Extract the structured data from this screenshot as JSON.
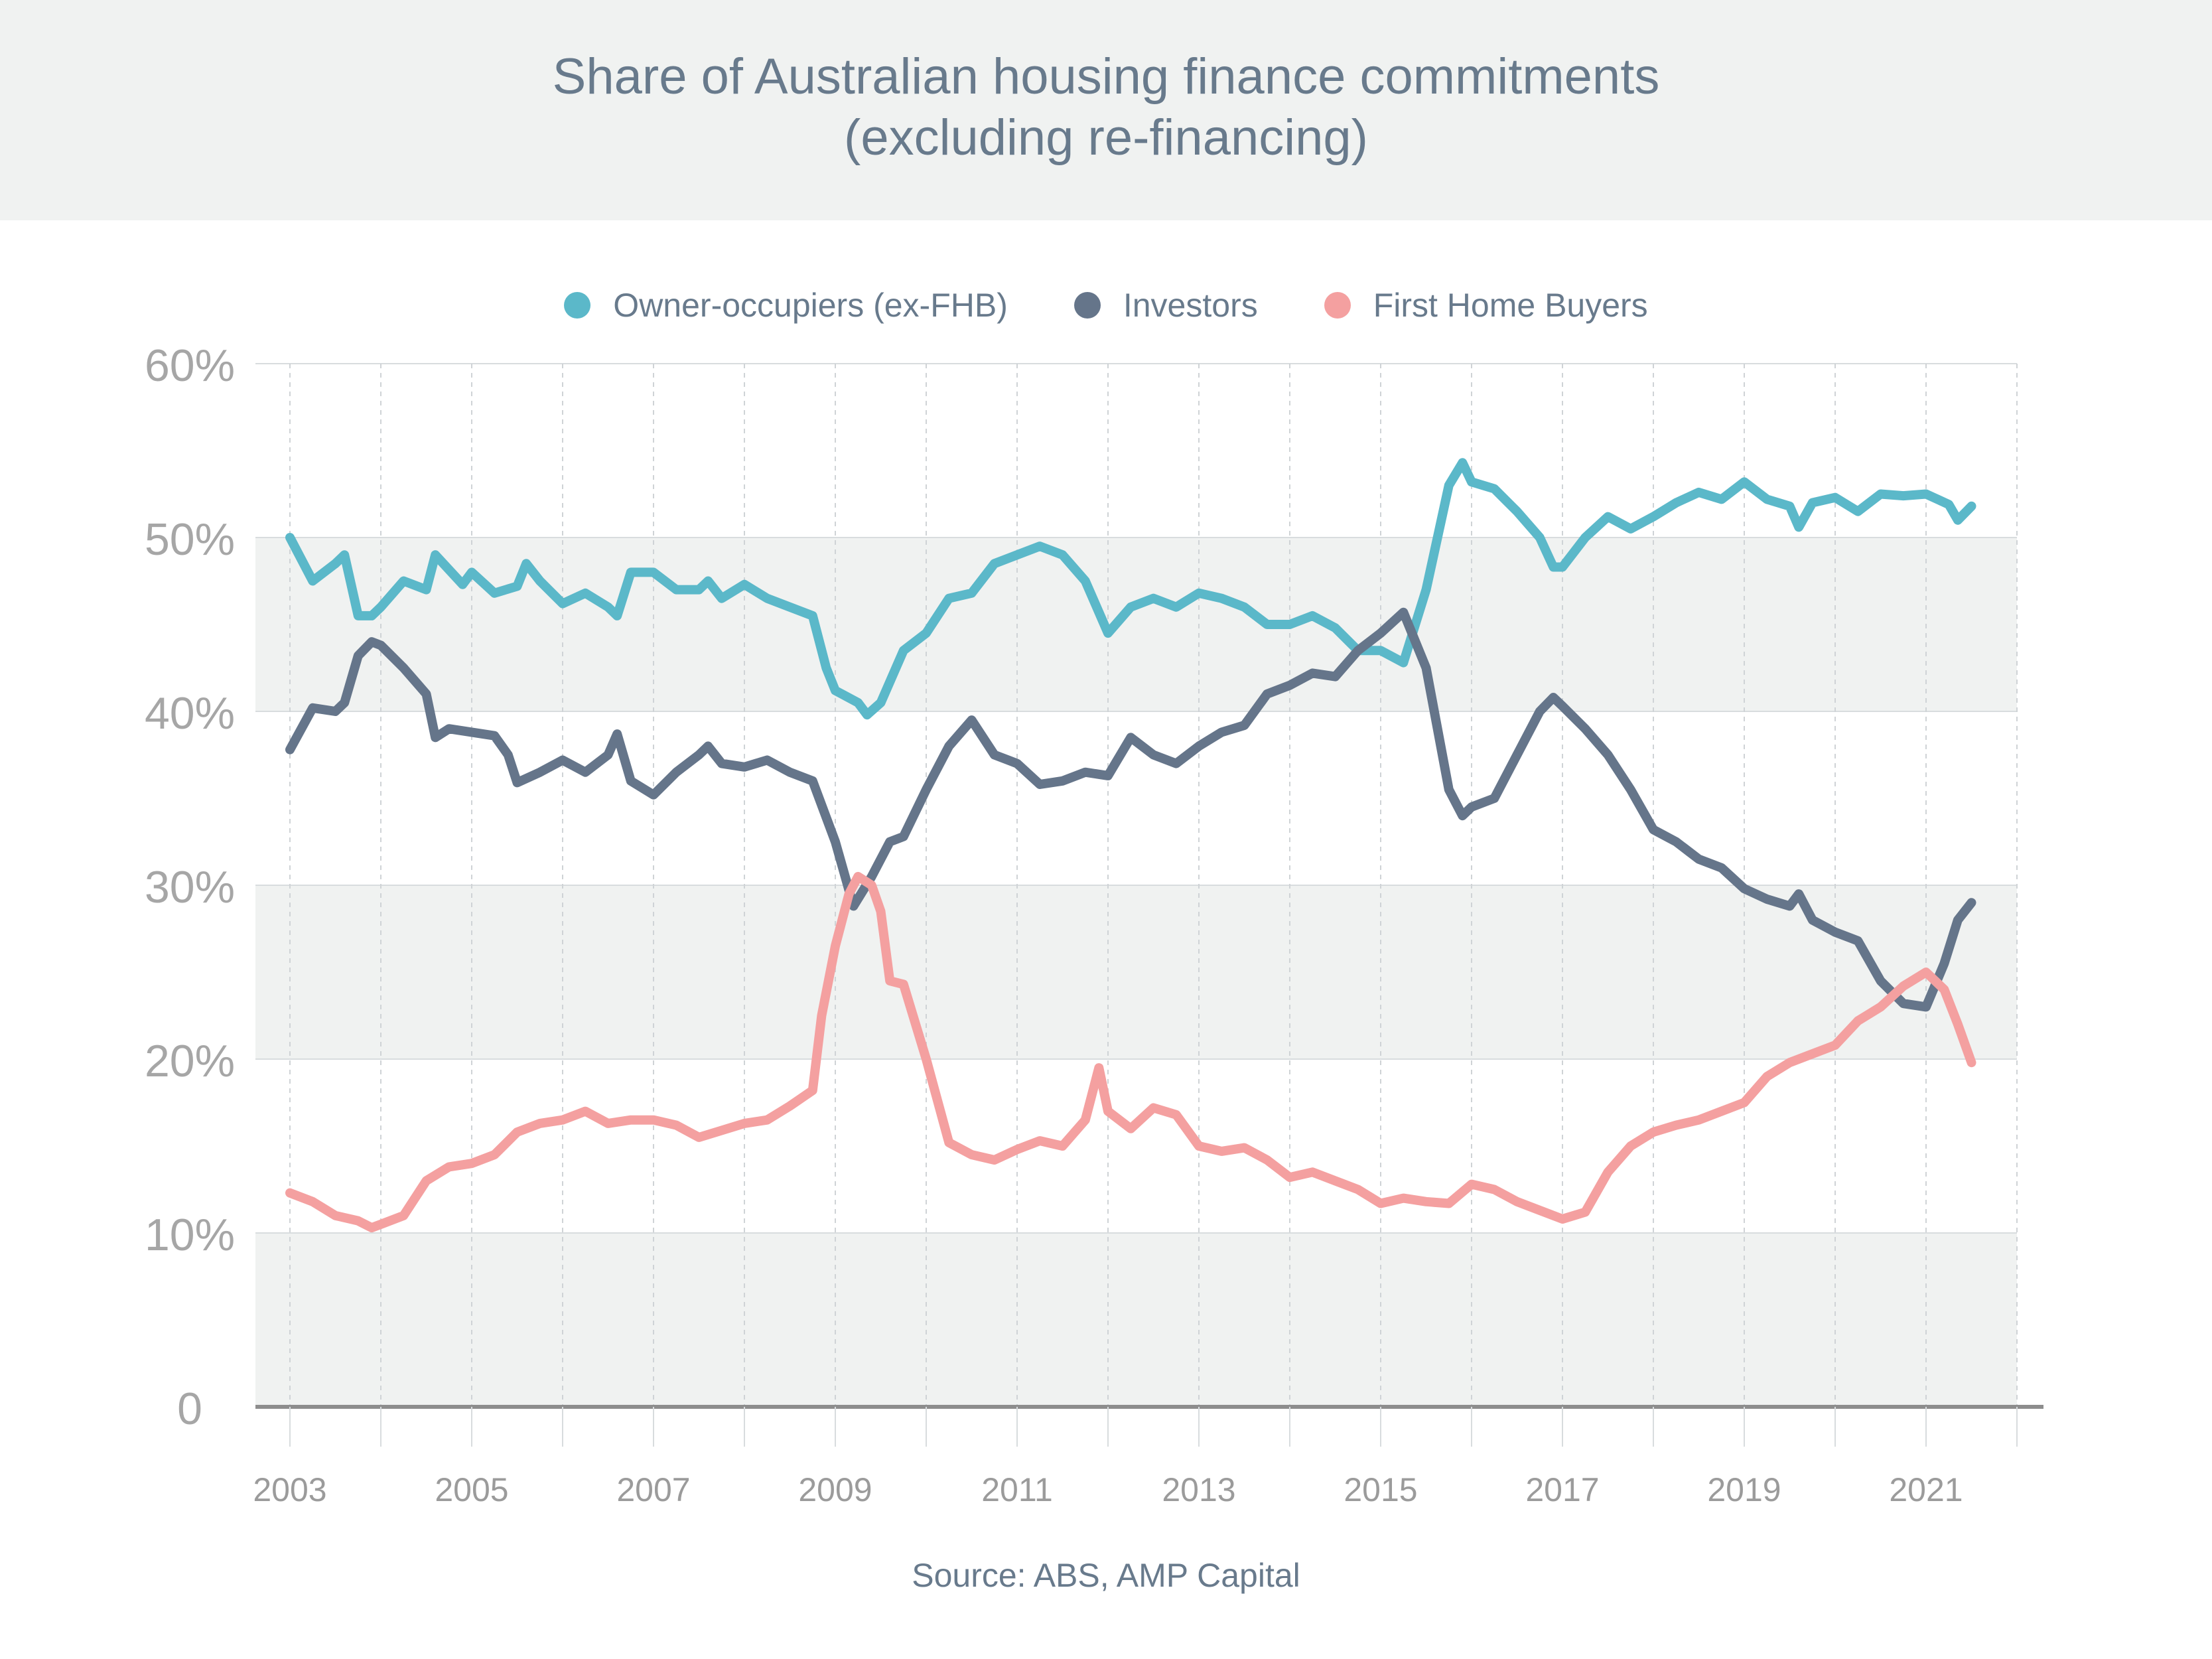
{
  "chart_data": {
    "type": "line",
    "title": "Share of Australian housing finance commitments",
    "subtitle": "(excluding re-financing)",
    "source": "Source: ABS, AMP Capital",
    "x_ticks": [
      "2003",
      "2005",
      "2007",
      "2009",
      "2011",
      "2013",
      "2015",
      "2017",
      "2019",
      "2021"
    ],
    "y_ticks": [
      "0",
      "10%",
      "20%",
      "30%",
      "40%",
      "50%",
      "60%"
    ],
    "ylim": [
      0,
      60
    ],
    "xlim": [
      2003,
      2022
    ],
    "legend_position": "top-center",
    "series": [
      {
        "name": "Owner-occupiers (ex-FHB)",
        "color": "#5bb8c9",
        "points": [
          [
            2003.0,
            50.0
          ],
          [
            2003.25,
            47.5
          ],
          [
            2003.5,
            48.5
          ],
          [
            2003.6,
            49.0
          ],
          [
            2003.75,
            45.5
          ],
          [
            2003.9,
            45.5
          ],
          [
            2004.0,
            46.0
          ],
          [
            2004.25,
            47.5
          ],
          [
            2004.5,
            47.0
          ],
          [
            2004.6,
            49.0
          ],
          [
            2004.9,
            47.3
          ],
          [
            2005.0,
            48.0
          ],
          [
            2005.25,
            46.8
          ],
          [
            2005.5,
            47.2
          ],
          [
            2005.6,
            48.5
          ],
          [
            2005.75,
            47.5
          ],
          [
            2006.0,
            46.2
          ],
          [
            2006.25,
            46.8
          ],
          [
            2006.5,
            46.0
          ],
          [
            2006.6,
            45.5
          ],
          [
            2006.75,
            48.0
          ],
          [
            2007.0,
            48.0
          ],
          [
            2007.25,
            47.0
          ],
          [
            2007.5,
            47.0
          ],
          [
            2007.6,
            47.5
          ],
          [
            2007.75,
            46.5
          ],
          [
            2008.0,
            47.3
          ],
          [
            2008.25,
            46.5
          ],
          [
            2008.5,
            46.0
          ],
          [
            2008.75,
            45.5
          ],
          [
            2008.9,
            42.5
          ],
          [
            2009.0,
            41.2
          ],
          [
            2009.25,
            40.5
          ],
          [
            2009.35,
            39.8
          ],
          [
            2009.5,
            40.5
          ],
          [
            2009.75,
            43.5
          ],
          [
            2010.0,
            44.5
          ],
          [
            2010.25,
            46.5
          ],
          [
            2010.5,
            46.8
          ],
          [
            2010.75,
            48.5
          ],
          [
            2011.0,
            49.0
          ],
          [
            2011.25,
            49.5
          ],
          [
            2011.5,
            49.0
          ],
          [
            2011.75,
            47.5
          ],
          [
            2012.0,
            44.5
          ],
          [
            2012.25,
            46.0
          ],
          [
            2012.5,
            46.5
          ],
          [
            2012.75,
            46.0
          ],
          [
            2013.0,
            46.8
          ],
          [
            2013.25,
            46.5
          ],
          [
            2013.5,
            46.0
          ],
          [
            2013.75,
            45.0
          ],
          [
            2014.0,
            45.0
          ],
          [
            2014.25,
            45.5
          ],
          [
            2014.5,
            44.8
          ],
          [
            2014.75,
            43.5
          ],
          [
            2015.0,
            43.5
          ],
          [
            2015.25,
            42.8
          ],
          [
            2015.5,
            47.0
          ],
          [
            2015.75,
            53.0
          ],
          [
            2015.9,
            54.3
          ],
          [
            2016.0,
            53.2
          ],
          [
            2016.25,
            52.8
          ],
          [
            2016.5,
            51.5
          ],
          [
            2016.75,
            50.0
          ],
          [
            2016.9,
            48.3
          ],
          [
            2017.0,
            48.3
          ],
          [
            2017.25,
            50.0
          ],
          [
            2017.5,
            51.2
          ],
          [
            2017.75,
            50.5
          ],
          [
            2018.0,
            51.2
          ],
          [
            2018.25,
            52.0
          ],
          [
            2018.5,
            52.6
          ],
          [
            2018.75,
            52.2
          ],
          [
            2019.0,
            53.2
          ],
          [
            2019.25,
            52.2
          ],
          [
            2019.5,
            51.8
          ],
          [
            2019.6,
            50.6
          ],
          [
            2019.75,
            52.0
          ],
          [
            2020.0,
            52.3
          ],
          [
            2020.25,
            51.5
          ],
          [
            2020.5,
            52.5
          ],
          [
            2020.75,
            52.4
          ],
          [
            2021.0,
            52.5
          ],
          [
            2021.25,
            51.9
          ],
          [
            2021.35,
            51.0
          ],
          [
            2021.5,
            51.8
          ]
        ]
      },
      {
        "name": "Investors",
        "color": "#65758a",
        "points": [
          [
            2003.0,
            37.8
          ],
          [
            2003.25,
            40.2
          ],
          [
            2003.5,
            40.0
          ],
          [
            2003.6,
            40.5
          ],
          [
            2003.75,
            43.2
          ],
          [
            2003.9,
            44.0
          ],
          [
            2004.0,
            43.8
          ],
          [
            2004.25,
            42.5
          ],
          [
            2004.5,
            41.0
          ],
          [
            2004.6,
            38.5
          ],
          [
            2004.75,
            39.0
          ],
          [
            2005.0,
            38.8
          ],
          [
            2005.25,
            38.6
          ],
          [
            2005.4,
            37.5
          ],
          [
            2005.5,
            35.9
          ],
          [
            2005.75,
            36.5
          ],
          [
            2006.0,
            37.2
          ],
          [
            2006.25,
            36.5
          ],
          [
            2006.5,
            37.5
          ],
          [
            2006.6,
            38.7
          ],
          [
            2006.75,
            36.0
          ],
          [
            2007.0,
            35.2
          ],
          [
            2007.25,
            36.5
          ],
          [
            2007.5,
            37.5
          ],
          [
            2007.6,
            38.0
          ],
          [
            2007.75,
            37.0
          ],
          [
            2008.0,
            36.8
          ],
          [
            2008.25,
            37.2
          ],
          [
            2008.5,
            36.5
          ],
          [
            2008.75,
            36.0
          ],
          [
            2009.0,
            32.5
          ],
          [
            2009.2,
            28.8
          ],
          [
            2009.4,
            30.5
          ],
          [
            2009.6,
            32.5
          ],
          [
            2009.75,
            32.8
          ],
          [
            2010.0,
            35.5
          ],
          [
            2010.25,
            38.0
          ],
          [
            2010.5,
            39.5
          ],
          [
            2010.75,
            37.5
          ],
          [
            2011.0,
            37.0
          ],
          [
            2011.25,
            35.8
          ],
          [
            2011.5,
            36.0
          ],
          [
            2011.75,
            36.5
          ],
          [
            2012.0,
            36.3
          ],
          [
            2012.25,
            38.5
          ],
          [
            2012.5,
            37.5
          ],
          [
            2012.75,
            37.0
          ],
          [
            2013.0,
            38.0
          ],
          [
            2013.25,
            38.8
          ],
          [
            2013.5,
            39.2
          ],
          [
            2013.75,
            41.0
          ],
          [
            2014.0,
            41.5
          ],
          [
            2014.25,
            42.2
          ],
          [
            2014.5,
            42.0
          ],
          [
            2014.75,
            43.5
          ],
          [
            2015.0,
            44.5
          ],
          [
            2015.25,
            45.7
          ],
          [
            2015.5,
            42.5
          ],
          [
            2015.75,
            35.5
          ],
          [
            2015.9,
            34.0
          ],
          [
            2016.0,
            34.5
          ],
          [
            2016.25,
            35.0
          ],
          [
            2016.5,
            37.5
          ],
          [
            2016.75,
            40.0
          ],
          [
            2016.9,
            40.8
          ],
          [
            2017.0,
            40.3
          ],
          [
            2017.25,
            39.0
          ],
          [
            2017.5,
            37.5
          ],
          [
            2017.75,
            35.5
          ],
          [
            2018.0,
            33.2
          ],
          [
            2018.25,
            32.5
          ],
          [
            2018.5,
            31.5
          ],
          [
            2018.75,
            31.0
          ],
          [
            2019.0,
            29.8
          ],
          [
            2019.25,
            29.2
          ],
          [
            2019.5,
            28.8
          ],
          [
            2019.6,
            29.5
          ],
          [
            2019.75,
            28.0
          ],
          [
            2020.0,
            27.3
          ],
          [
            2020.25,
            26.8
          ],
          [
            2020.5,
            24.5
          ],
          [
            2020.75,
            23.2
          ],
          [
            2021.0,
            23.0
          ],
          [
            2021.2,
            25.5
          ],
          [
            2021.35,
            28.0
          ],
          [
            2021.5,
            29.0
          ]
        ]
      },
      {
        "name": "First Home Buyers",
        "color": "#f4a0a0",
        "points": [
          [
            2003.0,
            12.3
          ],
          [
            2003.25,
            11.8
          ],
          [
            2003.5,
            11.0
          ],
          [
            2003.75,
            10.7
          ],
          [
            2003.9,
            10.3
          ],
          [
            2004.0,
            10.5
          ],
          [
            2004.25,
            11.0
          ],
          [
            2004.5,
            13.0
          ],
          [
            2004.75,
            13.8
          ],
          [
            2005.0,
            14.0
          ],
          [
            2005.25,
            14.5
          ],
          [
            2005.5,
            15.8
          ],
          [
            2005.75,
            16.3
          ],
          [
            2006.0,
            16.5
          ],
          [
            2006.25,
            17.0
          ],
          [
            2006.5,
            16.3
          ],
          [
            2006.75,
            16.5
          ],
          [
            2007.0,
            16.5
          ],
          [
            2007.25,
            16.2
          ],
          [
            2007.5,
            15.5
          ],
          [
            2007.75,
            15.9
          ],
          [
            2008.0,
            16.3
          ],
          [
            2008.25,
            16.5
          ],
          [
            2008.5,
            17.3
          ],
          [
            2008.75,
            18.2
          ],
          [
            2008.85,
            22.5
          ],
          [
            2009.0,
            26.5
          ],
          [
            2009.15,
            29.5
          ],
          [
            2009.25,
            30.5
          ],
          [
            2009.4,
            30.0
          ],
          [
            2009.5,
            28.5
          ],
          [
            2009.6,
            24.5
          ],
          [
            2009.75,
            24.3
          ],
          [
            2010.0,
            20.0
          ],
          [
            2010.25,
            15.2
          ],
          [
            2010.5,
            14.5
          ],
          [
            2010.75,
            14.2
          ],
          [
            2011.0,
            14.8
          ],
          [
            2011.25,
            15.3
          ],
          [
            2011.5,
            15.0
          ],
          [
            2011.75,
            16.5
          ],
          [
            2011.9,
            19.5
          ],
          [
            2012.0,
            17.0
          ],
          [
            2012.25,
            16.0
          ],
          [
            2012.5,
            17.2
          ],
          [
            2012.75,
            16.8
          ],
          [
            2013.0,
            15.0
          ],
          [
            2013.25,
            14.7
          ],
          [
            2013.5,
            14.9
          ],
          [
            2013.75,
            14.2
          ],
          [
            2014.0,
            13.2
          ],
          [
            2014.25,
            13.5
          ],
          [
            2014.5,
            13.0
          ],
          [
            2014.75,
            12.5
          ],
          [
            2015.0,
            11.7
          ],
          [
            2015.25,
            12.0
          ],
          [
            2015.5,
            11.8
          ],
          [
            2015.75,
            11.7
          ],
          [
            2016.0,
            12.8
          ],
          [
            2016.25,
            12.5
          ],
          [
            2016.5,
            11.8
          ],
          [
            2016.75,
            11.3
          ],
          [
            2017.0,
            10.8
          ],
          [
            2017.25,
            11.2
          ],
          [
            2017.5,
            13.5
          ],
          [
            2017.75,
            15.0
          ],
          [
            2018.0,
            15.8
          ],
          [
            2018.25,
            16.2
          ],
          [
            2018.5,
            16.5
          ],
          [
            2018.75,
            17.0
          ],
          [
            2019.0,
            17.5
          ],
          [
            2019.25,
            19.0
          ],
          [
            2019.5,
            19.8
          ],
          [
            2019.75,
            20.3
          ],
          [
            2020.0,
            20.8
          ],
          [
            2020.25,
            22.2
          ],
          [
            2020.5,
            23.0
          ],
          [
            2020.75,
            24.2
          ],
          [
            2021.0,
            25.0
          ],
          [
            2021.2,
            24.0
          ],
          [
            2021.35,
            22.0
          ],
          [
            2021.5,
            19.8
          ]
        ]
      }
    ]
  }
}
